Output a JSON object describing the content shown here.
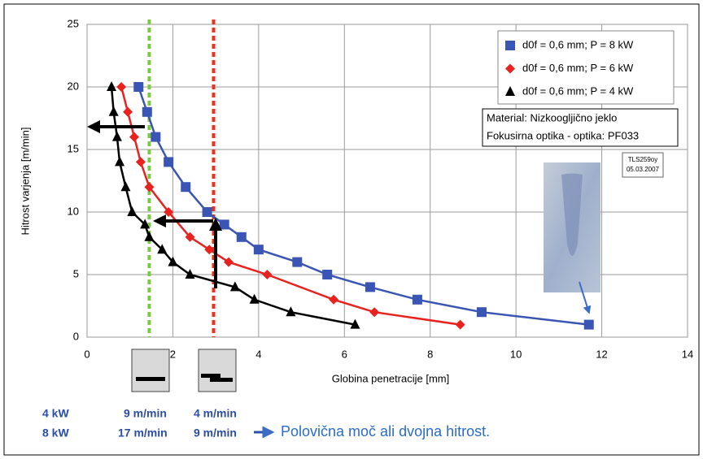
{
  "chart_data": {
    "type": "line",
    "x_label": "Globina penetracije [mm]",
    "y_label": "Hitrost varjenja [m/min]",
    "xlim": [
      0,
      14
    ],
    "xticks": [
      0,
      2,
      4,
      6,
      8,
      10,
      12,
      14
    ],
    "ylim": [
      0,
      25
    ],
    "yticks": [
      0,
      5,
      10,
      15,
      20,
      25
    ],
    "grid": true,
    "legend": "upper right",
    "series": [
      {
        "name": "d0f = 0,6 mm; P = 8 kW",
        "color": "#3a55b4",
        "marker": "square",
        "x": [
          1.2,
          1.4,
          1.6,
          1.9,
          2.3,
          2.8,
          3.2,
          3.6,
          4.0,
          4.9,
          5.6,
          6.6,
          7.7,
          9.2,
          11.7
        ],
        "values": [
          20,
          18,
          16,
          14,
          12,
          10,
          9,
          8,
          7,
          6,
          5,
          4,
          3,
          2,
          1
        ]
      },
      {
        "name": "d0f = 0,6 mm; P = 6 kW",
        "color": "#e8231f",
        "marker": "diamond",
        "x": [
          0.8,
          0.95,
          1.1,
          1.25,
          1.45,
          1.9,
          2.4,
          2.85,
          3.3,
          4.2,
          5.75,
          6.7,
          8.7
        ],
        "values": [
          20,
          18,
          16,
          14,
          12,
          10,
          8,
          7,
          6,
          5,
          3,
          2,
          1
        ]
      },
      {
        "name": "d0f = 0,6 mm; P = 4 kW",
        "color": "#000000",
        "marker": "triangle",
        "x": [
          0.57,
          0.62,
          0.7,
          0.76,
          0.9,
          1.05,
          1.35,
          1.45,
          1.75,
          2.0,
          2.4,
          3.45,
          3.9,
          4.75,
          6.25
        ],
        "values": [
          20,
          18,
          16,
          14,
          12,
          10,
          9,
          8,
          7,
          6,
          5,
          4,
          3,
          2,
          1
        ]
      }
    ],
    "reference_lines": [
      {
        "x": 1.45,
        "color": "#7ac943"
      },
      {
        "x": 2.95,
        "color": "#e8321e"
      }
    ],
    "annotations": [
      "Material: Nizkoogljično jeklo",
      "Fokusirna optika - optika: PF033",
      "TLS259oy",
      "05.03.2007"
    ]
  },
  "comparison": {
    "rows": [
      [
        "4 kW",
        "9 m/min",
        "4 m/min"
      ],
      [
        "8 kW",
        "17 m/min",
        "9 m/min"
      ]
    ],
    "conclusion": "Polovična moč ali dvojna hitrost."
  }
}
